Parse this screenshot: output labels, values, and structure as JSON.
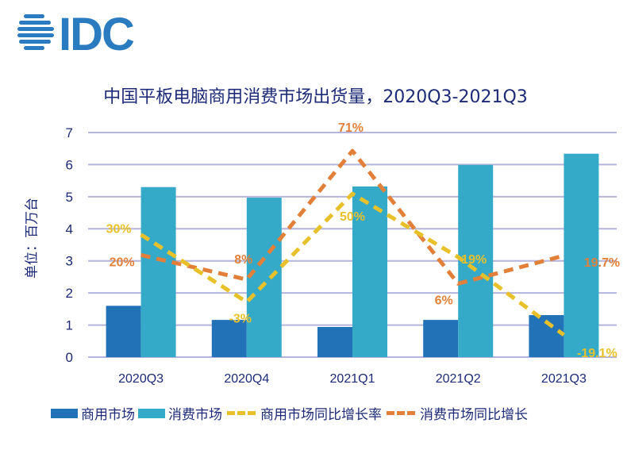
{
  "logo_text": "IDC",
  "chart_data": {
    "type": "bar+line",
    "title": "中国平板电脑商用消费市场出货量，2020Q3-2021Q3",
    "ylabel": "单位：百万台",
    "ylim": [
      0,
      7
    ],
    "yticks": [
      "0",
      "1",
      "2",
      "3",
      "4",
      "5",
      "6",
      "7"
    ],
    "secondary_ylim_percent": [
      -30,
      80
    ],
    "categories": [
      "2020Q3",
      "2020Q4",
      "2021Q1",
      "2021Q2",
      "2021Q3"
    ],
    "grid": true,
    "legend_position": "bottom",
    "series": [
      {
        "name": "商用市场",
        "type": "bar",
        "axis": "primary",
        "color": "#2272b8",
        "values": [
          1.6,
          1.16,
          0.94,
          1.16,
          1.31
        ]
      },
      {
        "name": "消费市场",
        "type": "bar",
        "axis": "primary",
        "color": "#35aac8",
        "values": [
          5.3,
          4.97,
          5.32,
          5.99,
          6.34
        ]
      },
      {
        "name": "商用市场同比增长率",
        "type": "line",
        "axis": "secondary",
        "color": "#e8c12a",
        "values": [
          30,
          -3,
          50,
          19,
          -19.1
        ],
        "labels": [
          "30%",
          "-3%",
          "50%",
          "19%",
          "-19.1%"
        ]
      },
      {
        "name": "消费市场同比增长",
        "type": "line",
        "axis": "secondary",
        "color": "#e2803a",
        "values": [
          20,
          8,
          71,
          6,
          19.7
        ],
        "labels": [
          "20%",
          "8%",
          "71%",
          "6%",
          "19.7%"
        ]
      }
    ]
  }
}
